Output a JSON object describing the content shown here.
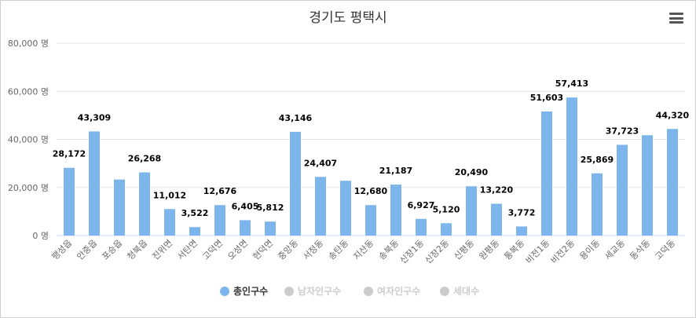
{
  "chart_data": {
    "type": "bar",
    "title": "경기도 평택시",
    "categories": [
      "팽성읍",
      "안중읍",
      "포승읍",
      "청북읍",
      "진위면",
      "서탄면",
      "고덕면",
      "오성면",
      "현덕면",
      "중앙동",
      "서정동",
      "송탄동",
      "지산동",
      "송북동",
      "신장1동",
      "신장2동",
      "신평동",
      "원평동",
      "통복동",
      "비전1동",
      "비전2동",
      "용이동",
      "세교동",
      "동삭동",
      "고덕동"
    ],
    "series": [
      {
        "name": "총인구수",
        "color": "#7cb5ec",
        "visible": true,
        "values": [
          28172,
          43309,
          23300,
          26268,
          11012,
          3522,
          12676,
          6405,
          5812,
          43146,
          24407,
          22800,
          12680,
          21187,
          6927,
          5120,
          20490,
          13220,
          3772,
          51603,
          57413,
          25869,
          37723,
          41700,
          44320
        ],
        "labels": [
          "28,172",
          "43,309",
          null,
          "26,268",
          "11,012",
          "3,522",
          "12,676",
          "6,405",
          "5,812",
          "43,146",
          "24,407",
          null,
          "12,680",
          "21,187",
          "6,927",
          "5,120",
          "20,490",
          "13,220",
          "3,772",
          "51,603",
          "57,413",
          "25,869",
          "37,723",
          null,
          "44,320"
        ]
      },
      {
        "name": "남자인구수",
        "color": "#cccccc",
        "visible": false
      },
      {
        "name": "여자인구수",
        "color": "#cccccc",
        "visible": false
      },
      {
        "name": "세대수",
        "color": "#cccccc",
        "visible": false
      }
    ],
    "ylim": [
      0,
      80000
    ],
    "yticks": [
      0,
      20000,
      40000,
      60000,
      80000
    ],
    "ytick_labels": [
      "0 명",
      "20,000 명",
      "40,000 명",
      "60,000 명",
      "80,000 명"
    ],
    "grid": true,
    "legend_position": "bottom"
  },
  "menu_icon": "hamburger-menu-icon"
}
